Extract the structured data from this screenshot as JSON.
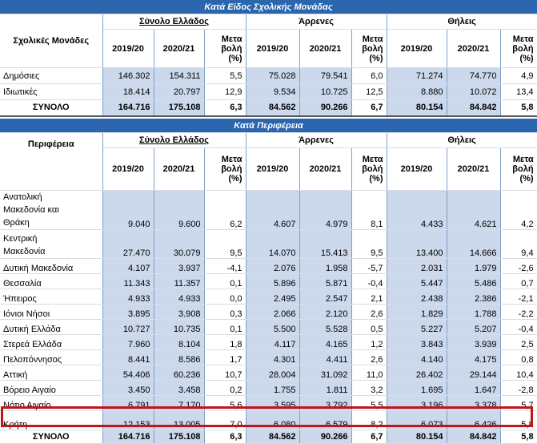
{
  "section1": {
    "banner": "Κατά Είδος Σχολικής Μονάδας",
    "row_label_header": "Σχολικές Μονάδες",
    "groups": [
      "Σύνολο Ελλάδος",
      "Άρρενες",
      "Θήλεις"
    ],
    "col_year1": "2019/20",
    "col_year2": "2020/21",
    "col_change": [
      "Μετα",
      "βολή",
      "(%)"
    ],
    "rows": [
      {
        "label": "Δημόσιες",
        "v": [
          "146.302",
          "154.311",
          "5,5",
          "75.028",
          "79.541",
          "6,0",
          "71.274",
          "74.770",
          "4,9"
        ]
      },
      {
        "label": "Ιδιωτικές",
        "v": [
          "18.414",
          "20.797",
          "12,9",
          "9.534",
          "10.725",
          "12,5",
          "8.880",
          "10.072",
          "13,4"
        ]
      }
    ],
    "total": {
      "label": "ΣΥΝΟΛΟ",
      "v": [
        "164.716",
        "175.108",
        "6,3",
        "84.562",
        "90.266",
        "6,7",
        "80.154",
        "84.842",
        "5,8"
      ]
    }
  },
  "section2": {
    "banner": "Κατά Περιφέρεια",
    "row_label_header": "Περιφέρεια",
    "groups": [
      "Σύνολο Ελλάδος",
      "Άρρενες",
      "Θήλεις"
    ],
    "col_year1": "2019/20",
    "col_year2": "2020/21",
    "col_change": [
      "Μετα",
      "βολή",
      "(%)"
    ],
    "rows": [
      {
        "label": [
          "Ανατολική",
          "Μακεδονία και",
          "Θράκη"
        ],
        "v": [
          "9.040",
          "9.600",
          "6,2",
          "4.607",
          "4.979",
          "8,1",
          "4.433",
          "4.621",
          "4,2"
        ]
      },
      {
        "label": [
          "Κεντρική",
          "Μακεδονία"
        ],
        "v": [
          "27.470",
          "30.079",
          "9,5",
          "14.070",
          "15.413",
          "9,5",
          "13.400",
          "14.666",
          "9,4"
        ]
      },
      {
        "label": [
          "Δυτική Μακεδονία"
        ],
        "v": [
          "4.107",
          "3.937",
          "-4,1",
          "2.076",
          "1.958",
          "-5,7",
          "2.031",
          "1.979",
          "-2,6"
        ]
      },
      {
        "label": [
          "Θεσσαλία"
        ],
        "v": [
          "11.343",
          "11.357",
          "0,1",
          "5.896",
          "5.871",
          "-0,4",
          "5.447",
          "5.486",
          "0,7"
        ]
      },
      {
        "label": [
          "Ήπειρος"
        ],
        "v": [
          "4.933",
          "4.933",
          "0,0",
          "2.495",
          "2.547",
          "2,1",
          "2.438",
          "2.386",
          "-2,1"
        ]
      },
      {
        "label": [
          "Ιόνιοι Νήσοι"
        ],
        "v": [
          "3.895",
          "3.908",
          "0,3",
          "2.066",
          "2.120",
          "2,6",
          "1.829",
          "1.788",
          "-2,2"
        ]
      },
      {
        "label": [
          "Δυτική Ελλάδα"
        ],
        "v": [
          "10.727",
          "10.735",
          "0,1",
          "5.500",
          "5.528",
          "0,5",
          "5.227",
          "5.207",
          "-0,4"
        ]
      },
      {
        "label": [
          "Στερεά Ελλάδα"
        ],
        "v": [
          "7.960",
          "8.104",
          "1,8",
          "4.117",
          "4.165",
          "1,2",
          "3.843",
          "3.939",
          "2,5"
        ]
      },
      {
        "label": [
          "Πελοπόννησος"
        ],
        "v": [
          "8.441",
          "8.586",
          "1,7",
          "4.301",
          "4.411",
          "2,6",
          "4.140",
          "4.175",
          "0,8"
        ]
      },
      {
        "label": [
          "Αττική"
        ],
        "v": [
          "54.406",
          "60.236",
          "10,7",
          "28.004",
          "31.092",
          "11,0",
          "26.402",
          "29.144",
          "10,4"
        ]
      },
      {
        "label": [
          "Βόρειο Αιγαίο"
        ],
        "v": [
          "3.450",
          "3.458",
          "0,2",
          "1.755",
          "1.811",
          "3,2",
          "1.695",
          "1.647",
          "-2,8"
        ]
      },
      {
        "label": [
          "Νότιο Αιγαίο"
        ],
        "v": [
          "6.791",
          "7.170",
          "5,6",
          "3.595",
          "3.792",
          "5,5",
          "3.196",
          "3.378",
          "5,7"
        ]
      },
      {
        "label": [
          "Κρήτη"
        ],
        "v": [
          "12.153",
          "13.005",
          "7,0",
          "6.080",
          "6.579",
          "8,2",
          "6.073",
          "6.426",
          "5,8"
        ]
      }
    ],
    "total": {
      "label": "ΣΥΝΟΛΟ",
      "v": [
        "164.716",
        "175.108",
        "6,3",
        "84.562",
        "90.266",
        "6,7",
        "80.154",
        "84.842",
        "5,8"
      ]
    }
  },
  "highlight_color": "#c0151b",
  "banner_color": "#2b65ad",
  "shade_color": "#ccd8ec"
}
